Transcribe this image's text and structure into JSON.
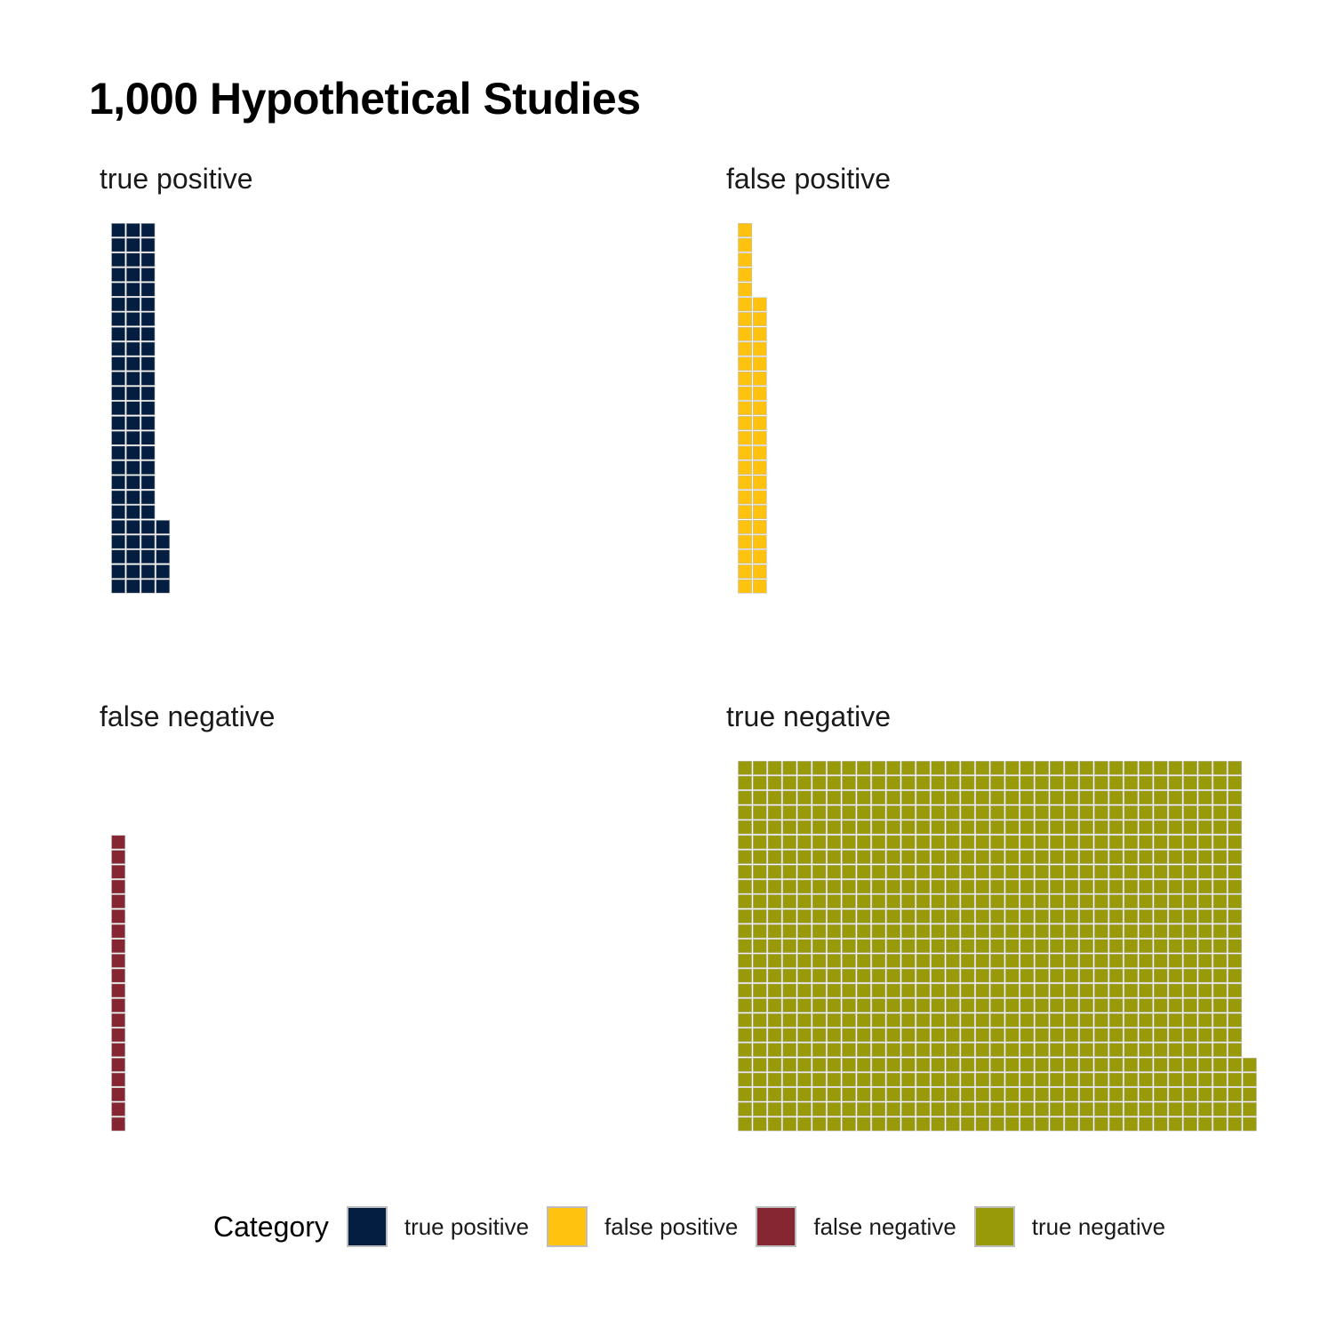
{
  "chart_data": {
    "type": "waffle",
    "title": "1,000 Hypothetical Studies",
    "legend": {
      "title": "Category",
      "placement": "bottom",
      "entries": [
        "true positive",
        "false positive",
        "false negative",
        "true negative"
      ]
    },
    "facets": [
      {
        "label": "true positive",
        "value": 80,
        "color": "#041E42"
      },
      {
        "label": "false positive",
        "value": 45,
        "color": "#FFC20E"
      },
      {
        "label": "false negative",
        "value": 20,
        "color": "#862633"
      },
      {
        "label": "true negative",
        "value": 855,
        "color": "#999A0A"
      }
    ],
    "units_per_row": 25,
    "cell_border": "#bdbdbd"
  }
}
